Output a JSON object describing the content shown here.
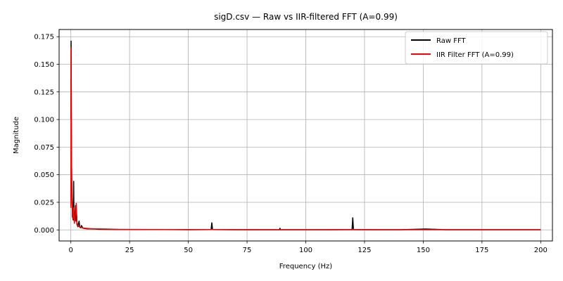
{
  "chart_data": {
    "type": "line",
    "title": "sigD.csv — Raw vs IIR-filtered FFT (A=0.99)",
    "xlabel": "Frequency (Hz)",
    "ylabel": "Magnitude",
    "xlim": [
      -5,
      205
    ],
    "ylim": [
      -0.01,
      0.1815
    ],
    "xticks": [
      0,
      25,
      50,
      75,
      100,
      125,
      150,
      175,
      200
    ],
    "xtick_labels": [
      "0",
      "25",
      "50",
      "75",
      "100",
      "125",
      "150",
      "175",
      "200"
    ],
    "yticks": [
      0.0,
      0.025,
      0.05,
      0.075,
      0.1,
      0.125,
      0.15,
      0.175
    ],
    "ytick_labels": [
      "0.000",
      "0.025",
      "0.050",
      "0.075",
      "0.100",
      "0.125",
      "0.150",
      "0.175"
    ],
    "grid": true,
    "legend_position": "top-right",
    "series": [
      {
        "name": "Raw FFT",
        "color": "#000000",
        "x": [
          0,
          0.1,
          0.2,
          0.3,
          0.5,
          0.7,
          1.0,
          1.2,
          1.3,
          1.5,
          1.7,
          2.0,
          2.2,
          2.4,
          2.6,
          2.8,
          3.0,
          3.5,
          3.8,
          4.0,
          4.3,
          4.5,
          5.0,
          5.2,
          5.5,
          6.0,
          7.0,
          8.0,
          10.0,
          12.0,
          15.0,
          20.0,
          30.0,
          40.0,
          50.0,
          59.7,
          60.0,
          60.3,
          70.0,
          80.0,
          88.8,
          89.0,
          89.2,
          100.0,
          110.0,
          119.7,
          120.0,
          120.3,
          130.0,
          140.0,
          151.0,
          160.0,
          170.0,
          180.0,
          190.0,
          200.0
        ],
        "y": [
          0.1,
          0.171,
          0.12,
          0.06,
          0.03,
          0.012,
          0.009,
          0.044,
          0.015,
          0.007,
          0.012,
          0.022,
          0.008,
          0.015,
          0.005,
          0.004,
          0.003,
          0.008,
          0.003,
          0.002,
          0.002,
          0.004,
          0.002,
          0.0015,
          0.0015,
          0.0012,
          0.001,
          0.001,
          0.0008,
          0.0006,
          0.0005,
          0.0004,
          0.0003,
          0.0003,
          0.0002,
          0.0003,
          0.0065,
          0.0003,
          0.0002,
          0.0002,
          0.0002,
          0.0015,
          0.0002,
          0.0002,
          0.0002,
          0.0003,
          0.011,
          0.0003,
          0.0002,
          0.0002,
          0.0008,
          0.0002,
          0.0002,
          0.0002,
          0.0002,
          0.0002
        ]
      },
      {
        "name": "IIR Filter FFT (A=0.99)",
        "color": "#ff0000",
        "x": [
          0,
          0.1,
          0.2,
          0.3,
          0.5,
          0.7,
          1.0,
          1.2,
          1.5,
          2.0,
          2.3,
          2.6,
          3.0,
          3.5,
          4.0,
          5.0,
          6.0,
          8.0,
          10.0,
          15.0,
          20.0,
          30.0,
          50.0,
          60.0,
          80.0,
          100.0,
          120.0,
          150.0,
          180.0,
          200.0
        ],
        "y": [
          0.02,
          0.165,
          0.11,
          0.05,
          0.025,
          0.02,
          0.01,
          0.02,
          0.006,
          0.015,
          0.024,
          0.007,
          0.004,
          0.003,
          0.0025,
          0.002,
          0.0015,
          0.0012,
          0.001,
          0.0008,
          0.0005,
          0.0004,
          0.0003,
          0.0003,
          0.0002,
          0.0002,
          0.0002,
          0.0002,
          0.0002,
          0.0002
        ]
      }
    ]
  }
}
